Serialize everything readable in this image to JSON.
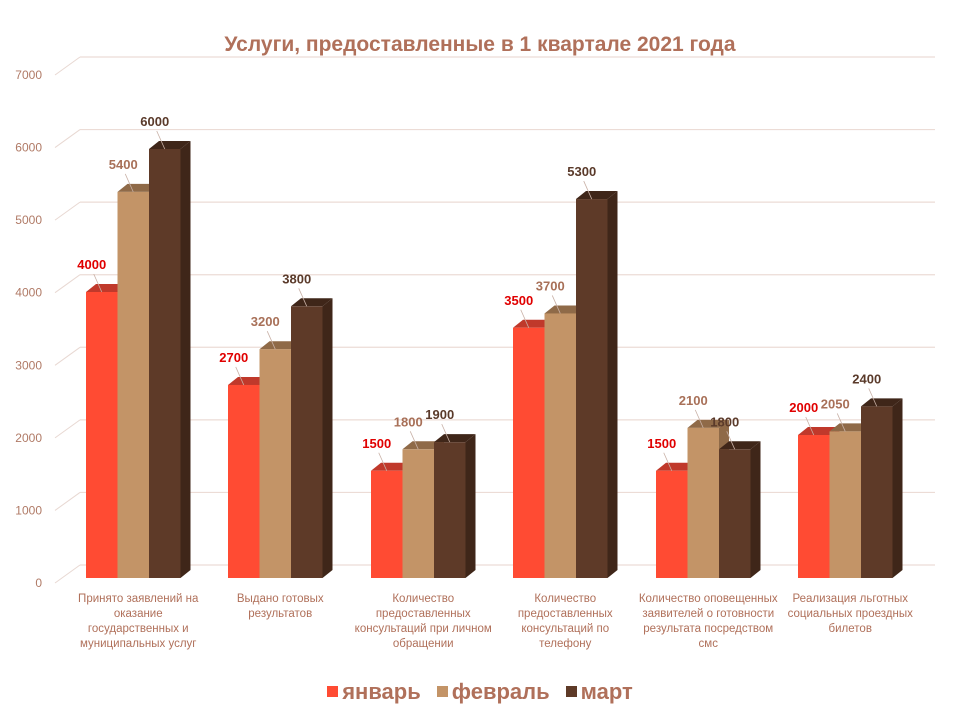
{
  "chart_data": {
    "type": "bar",
    "title": "Услуги, предоставленные в 1 квартале 2021 года",
    "categories": [
      "Принято заявлений на оказание государственных и муниципальных услуг",
      "Выдано готовых результатов",
      "Количество предоставленных консультаций при личном обращении",
      "Количество предоставленных консультаций по телефону",
      "Количество оповещенных заявителей о готовности результата посредством смс",
      "Реализация льготных социальных проездных билетов"
    ],
    "series": [
      {
        "name": "январь",
        "values": [
          4000,
          2700,
          1500,
          3500,
          1500,
          2000
        ],
        "color": "#ff4b33",
        "side": "#c0392b",
        "label_color": "#e00000"
      },
      {
        "name": "февраль",
        "values": [
          5400,
          3200,
          1800,
          3700,
          2100,
          2050
        ],
        "color": "#c39467",
        "side": "#8f6a48",
        "label_color": "#a87058"
      },
      {
        "name": "март",
        "values": [
          6000,
          3800,
          1900,
          5300,
          1800,
          2400
        ],
        "color": "#5e3a28",
        "side": "#3f2619",
        "label_color": "#5a3a2a"
      }
    ],
    "yticks": [
      "0",
      "1000",
      "2000",
      "3000",
      "4000",
      "5000",
      "6000",
      "7000"
    ],
    "ylim": [
      0,
      7000
    ],
    "grid": true,
    "legend": "bottom"
  }
}
